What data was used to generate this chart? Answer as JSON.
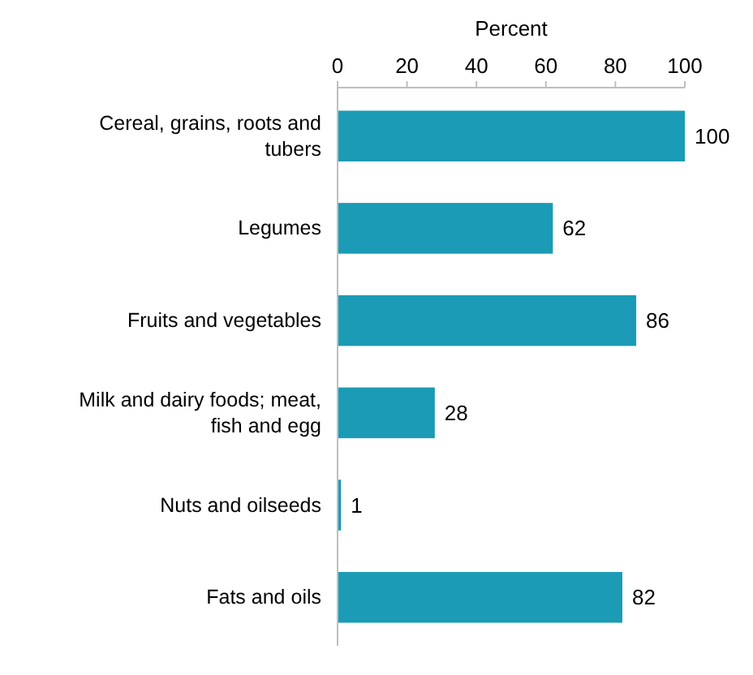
{
  "chart_data": {
    "type": "bar",
    "orientation": "horizontal",
    "xlabel": "Percent",
    "categories": [
      "Cereal, grains, roots and tubers",
      "Legumes",
      "Fruits and vegetables",
      "Milk and dairy foods; meat, fish and egg",
      "Nuts and oilseeds",
      "Fats and oils"
    ],
    "values": [
      100,
      62,
      86,
      28,
      1,
      82
    ],
    "color": "#1b9bb5",
    "xlim": [
      0,
      100
    ],
    "xticks": [
      0,
      20,
      40,
      60,
      80,
      100
    ],
    "grid": false,
    "data_labels": true
  }
}
